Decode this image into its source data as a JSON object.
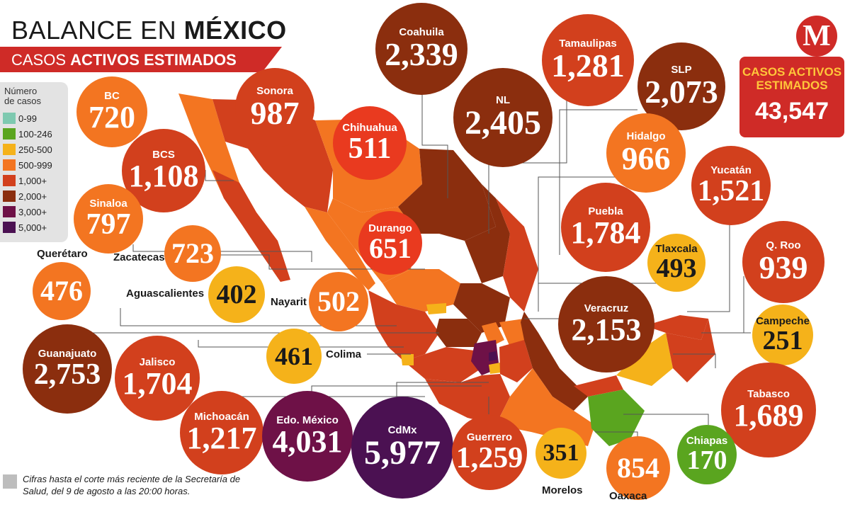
{
  "header": {
    "title_prefix": "BALANCE EN ",
    "title_bold": "MÉXICO",
    "subtitle_prefix": "CASOS ",
    "subtitle_bold": "ACTIVOS ESTIMADOS"
  },
  "legend": {
    "title_line1": "Número",
    "title_line2": "de casos",
    "items": [
      {
        "label": "0-99",
        "color": "#7ec9b0"
      },
      {
        "label": "100-246",
        "color": "#5aa51f"
      },
      {
        "label": "250-500",
        "color": "#f5b21a"
      },
      {
        "label": "500-999",
        "color": "#f37521"
      },
      {
        "label": "1,000+",
        "color": "#d2401d"
      },
      {
        "label": "2,000+",
        "color": "#8b2e0e"
      },
      {
        "label": "3,000+",
        "color": "#6e1147"
      },
      {
        "label": "5,000+",
        "color": "#4b1152"
      }
    ]
  },
  "logo": {
    "letter": "M"
  },
  "total": {
    "label_line1": "CASOS ACTIVOS",
    "label_line2": "ESTIMADOS",
    "value": "43,547"
  },
  "states": [
    {
      "name": "Coahuila",
      "value": "2,339"
    },
    {
      "name": "Tamaulipas",
      "value": "1,281"
    },
    {
      "name": "SLP",
      "value": "2,073"
    },
    {
      "name": "NL",
      "value": "2,405"
    },
    {
      "name": "BC",
      "value": "720"
    },
    {
      "name": "Sonora",
      "value": "987"
    },
    {
      "name": "Chihuahua",
      "value": "511"
    },
    {
      "name": "BCS",
      "value": "1,108"
    },
    {
      "name": "Sinaloa",
      "value": "797"
    },
    {
      "name": "Durango",
      "value": "651"
    },
    {
      "name": "Hidalgo",
      "value": "966"
    },
    {
      "name": "Yucatán",
      "value": "1,521"
    },
    {
      "name": "Puebla",
      "value": "1,784"
    },
    {
      "name": "Zacatecas",
      "value": "723"
    },
    {
      "name": "Querétaro",
      "value": "476"
    },
    {
      "name": "Aguascalientes",
      "value": "402"
    },
    {
      "name": "Nayarit",
      "value": "502"
    },
    {
      "name": "Tlaxcala",
      "value": "493"
    },
    {
      "name": "Q. Roo",
      "value": "939"
    },
    {
      "name": "Veracruz",
      "value": "2,153"
    },
    {
      "name": "Campeche",
      "value": "251"
    },
    {
      "name": "Guanajuato",
      "value": "2,753"
    },
    {
      "name": "Jalisco",
      "value": "1,704"
    },
    {
      "name": "Colima",
      "value": "461"
    },
    {
      "name": "Tabasco",
      "value": "1,689"
    },
    {
      "name": "Michoacán",
      "value": "1,217"
    },
    {
      "name": "Edo. México",
      "value": "4,031"
    },
    {
      "name": "CdMx",
      "value": "5,977"
    },
    {
      "name": "Guerrero",
      "value": "1,259"
    },
    {
      "name": "Morelos",
      "value": "351"
    },
    {
      "name": "Oaxaca",
      "value": "854"
    },
    {
      "name": "Chiapas",
      "value": "170"
    }
  ],
  "footnote": {
    "text": "Cifras hasta el corte más reciente de la Secretaría de Salud, del 9 de agosto a las 20:00 horas."
  }
}
